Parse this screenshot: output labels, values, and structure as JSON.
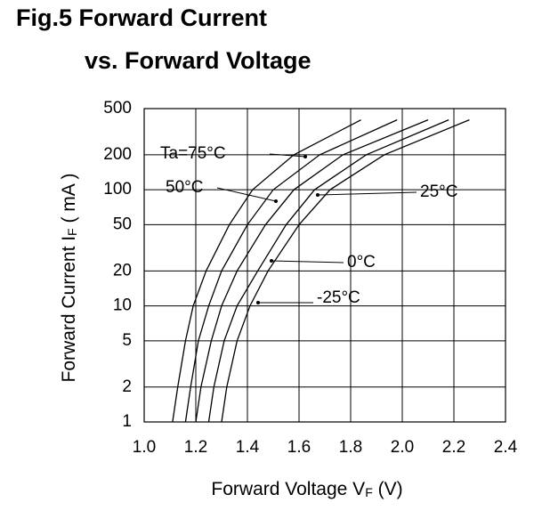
{
  "chart_data": {
    "type": "line",
    "title": [
      "Fig.5 Forward Current",
      "vs. Forward Voltage"
    ],
    "x_label": [
      "Forward Voltage V",
      "F",
      " (V)"
    ],
    "y_label": [
      "Forward Current I",
      "F",
      " ( mA )"
    ],
    "xlim": [
      1.0,
      2.4
    ],
    "xticks": [
      {
        "value": 1.0,
        "label": "1.0"
      },
      1.2,
      1.4,
      1.6,
      1.8,
      {
        "value": 2.0,
        "label": "2.0"
      },
      2.2,
      2.4
    ],
    "ylim": [
      1,
      500
    ],
    "yscale": "log",
    "yticks": [
      1,
      2,
      5,
      10,
      20,
      50,
      100,
      200,
      500
    ],
    "grid": true,
    "series": [
      {
        "name": "Ta=75°C",
        "color": "#000000",
        "x": [
          1.11,
          1.13,
          1.16,
          1.19,
          1.24,
          1.33,
          1.42,
          1.58,
          1.84
        ],
        "values": [
          1,
          2,
          5,
          10,
          20,
          50,
          100,
          200,
          400
        ]
      },
      {
        "name": "50°C",
        "color": "#000000",
        "x": [
          1.16,
          1.18,
          1.21,
          1.25,
          1.3,
          1.4,
          1.5,
          1.68,
          1.98
        ],
        "values": [
          1,
          2,
          5,
          10,
          20,
          50,
          100,
          200,
          400
        ]
      },
      {
        "name": "25°C",
        "color": "#000000",
        "x": [
          1.2,
          1.22,
          1.26,
          1.3,
          1.36,
          1.47,
          1.58,
          1.77,
          2.1
        ],
        "values": [
          1,
          2,
          5,
          10,
          20,
          50,
          100,
          200,
          400
        ]
      },
      {
        "name": "0°C",
        "color": "#000000",
        "x": [
          1.25,
          1.27,
          1.31,
          1.36,
          1.44,
          1.55,
          1.66,
          1.86,
          2.18
        ],
        "values": [
          1,
          2,
          5,
          10,
          20,
          50,
          100,
          200,
          400
        ]
      },
      {
        "name": "-25°C",
        "color": "#000000",
        "x": [
          1.3,
          1.32,
          1.36,
          1.41,
          1.48,
          1.6,
          1.72,
          1.93,
          2.26
        ],
        "values": [
          1,
          2,
          5,
          10,
          20,
          50,
          100,
          200,
          400
        ]
      }
    ]
  }
}
